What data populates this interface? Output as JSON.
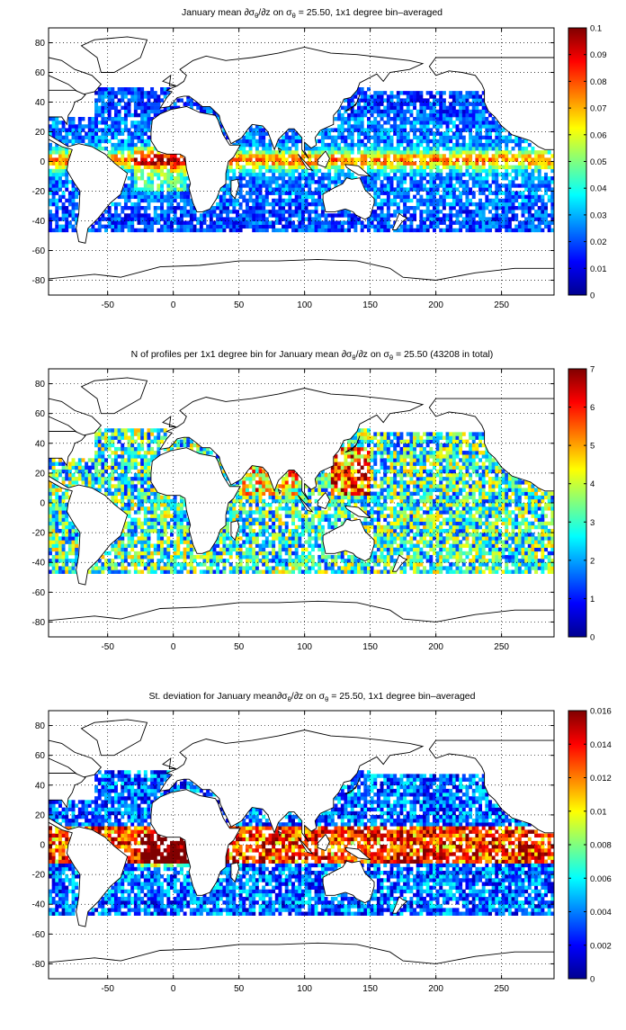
{
  "chart_data": [
    {
      "type": "heatmap",
      "title_parts": [
        "January mean ",
        "∂σ",
        "θ",
        "/∂z on σ",
        "θ",
        " = 25.50, 1x1 degree bin–averaged"
      ],
      "xticks": [
        -50,
        0,
        50,
        100,
        150,
        200,
        250
      ],
      "yticks": [
        80,
        60,
        40,
        20,
        0,
        -20,
        -40,
        -60,
        -80
      ],
      "xlim": [
        -95,
        290
      ],
      "ylim": [
        -90,
        90
      ],
      "grid": true,
      "colorbar": {
        "min": 0,
        "max": 0.1,
        "ticks": [
          "0",
          "0.01",
          "0.02",
          "0.03",
          "0.04",
          "0.05",
          "0.06",
          "0.07",
          "0.08",
          "0.09",
          "0.1"
        ]
      },
      "colormap": "jet"
    },
    {
      "type": "heatmap",
      "title_parts": [
        "N of profiles per 1x1 degree bin for January mean ",
        "∂σ",
        "θ",
        "/∂z on σ",
        "θ",
        " = 25.50 (43208 in total)"
      ],
      "xticks": [
        -50,
        0,
        50,
        100,
        150,
        200,
        250
      ],
      "yticks": [
        80,
        60,
        40,
        20,
        0,
        -20,
        -40,
        -60,
        -80
      ],
      "xlim": [
        -95,
        290
      ],
      "ylim": [
        -90,
        90
      ],
      "grid": true,
      "colorbar": {
        "min": 0,
        "max": 7,
        "ticks": [
          "0",
          "1",
          "2",
          "3",
          "4",
          "5",
          "6",
          "7"
        ]
      },
      "colormap": "jet"
    },
    {
      "type": "heatmap",
      "title_parts": [
        "St. deviation for January mean",
        "∂σ",
        "θ",
        "/∂z on σ",
        "θ",
        " = 25.50, 1x1 degree bin–averaged"
      ],
      "xticks": [
        -50,
        0,
        50,
        100,
        150,
        200,
        250
      ],
      "yticks": [
        80,
        60,
        40,
        20,
        0,
        -20,
        -40,
        -60,
        -80
      ],
      "xlim": [
        -95,
        290
      ],
      "ylim": [
        -90,
        90
      ],
      "grid": true,
      "colorbar": {
        "min": 0,
        "max": 0.016,
        "ticks": [
          "0",
          "0.002",
          "0.004",
          "0.006",
          "0.008",
          "0.01",
          "0.012",
          "0.014",
          "0.016"
        ]
      },
      "colormap": "jet"
    }
  ]
}
